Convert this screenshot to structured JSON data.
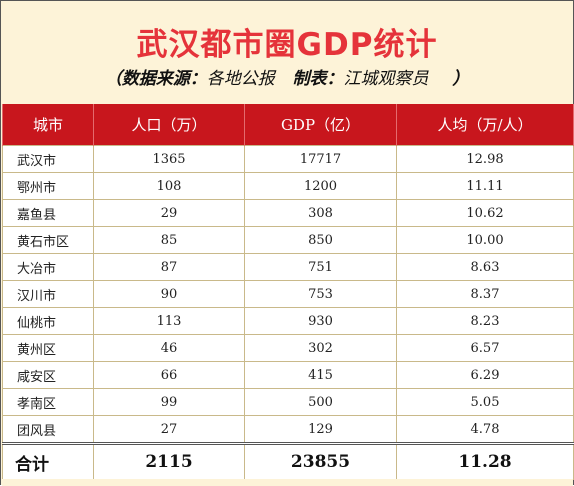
{
  "title": "武汉都市圈GDP统计",
  "subtitle": {
    "open": "（",
    "source_label": "数据来源：",
    "source_value": "各地公报",
    "maker_label": "制表：",
    "maker_value": "江城观察员",
    "close": "）"
  },
  "columns": [
    "城市",
    "人口（万）",
    "GDP（亿）",
    "人均（万/人）"
  ],
  "rows": [
    {
      "city": "武汉市",
      "pop": "1365",
      "gdp": "17717",
      "per": "12.98"
    },
    {
      "city": "鄂州市",
      "pop": "108",
      "gdp": "1200",
      "per": "11.11"
    },
    {
      "city": "嘉鱼县",
      "pop": "29",
      "gdp": "308",
      "per": "10.62"
    },
    {
      "city": "黄石市区",
      "pop": "85",
      "gdp": "850",
      "per": "10.00"
    },
    {
      "city": "大冶市",
      "pop": "87",
      "gdp": "751",
      "per": "8.63"
    },
    {
      "city": "汉川市",
      "pop": "90",
      "gdp": "753",
      "per": "8.37"
    },
    {
      "city": "仙桃市",
      "pop": "113",
      "gdp": "930",
      "per": "8.23"
    },
    {
      "city": "黄州区",
      "pop": "46",
      "gdp": "302",
      "per": "6.57"
    },
    {
      "city": "咸安区",
      "pop": "66",
      "gdp": "415",
      "per": "6.29"
    },
    {
      "city": "孝南区",
      "pop": "99",
      "gdp": "500",
      "per": "5.05"
    },
    {
      "city": "团风县",
      "pop": "27",
      "gdp": "129",
      "per": "4.78"
    }
  ],
  "total": {
    "label": "合计",
    "pop": "2115",
    "gdp": "23855",
    "per": "11.28"
  },
  "colors": {
    "title": "#e5333a",
    "header_bg": "#c8161d",
    "background": "#fdf3d8"
  }
}
